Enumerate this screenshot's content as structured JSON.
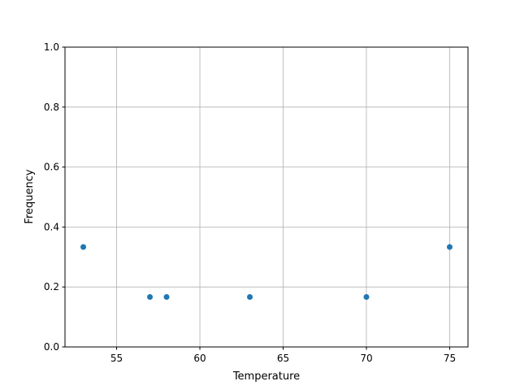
{
  "chart_data": {
    "type": "scatter",
    "title": "",
    "xlabel": "Temperature",
    "ylabel": "Frequency",
    "x": [
      53,
      57,
      58,
      63,
      70,
      75
    ],
    "y": [
      0.3333,
      0.1667,
      0.1667,
      0.1667,
      0.1667,
      0.3333
    ],
    "xlim": [
      51.9,
      76.1
    ],
    "ylim": [
      0,
      1
    ],
    "xticks": [
      55,
      60,
      65,
      70,
      75
    ],
    "yticks": [
      0.0,
      0.2,
      0.4,
      0.6,
      0.8,
      1.0
    ],
    "xtick_labels": [
      "55",
      "60",
      "65",
      "70",
      "75"
    ],
    "ytick_labels": [
      "0.0",
      "0.2",
      "0.4",
      "0.6",
      "0.8",
      "1.0"
    ],
    "grid": true,
    "color": "#1f77b4"
  }
}
